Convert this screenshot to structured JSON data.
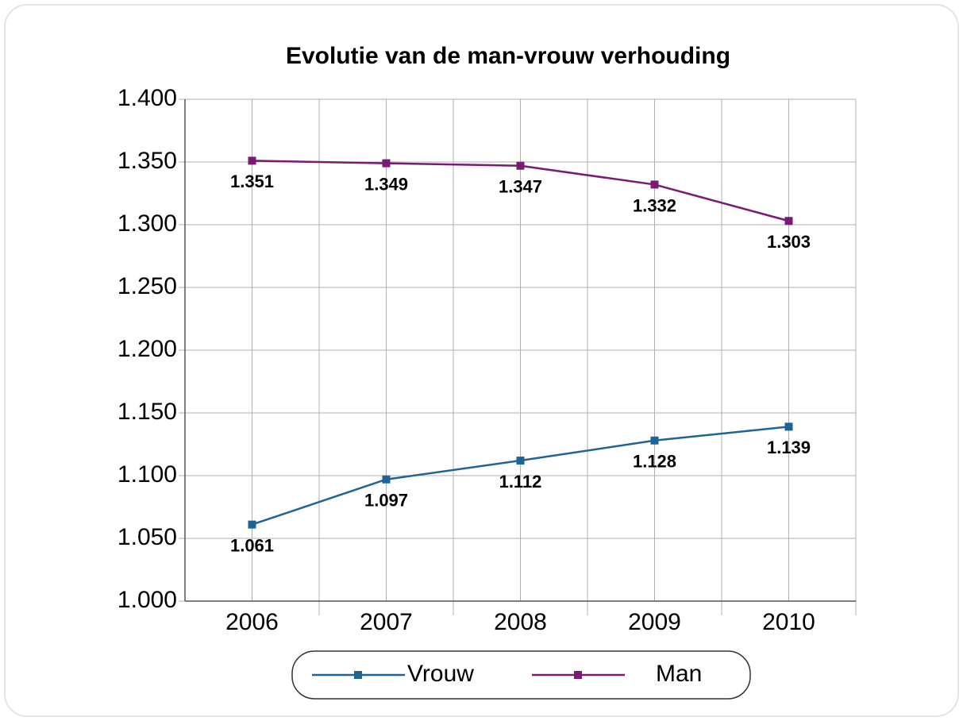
{
  "chart_data": {
    "type": "line",
    "title": "Evolutie van de man-vrouw verhouding",
    "categories": [
      "2006",
      "2007",
      "2008",
      "2009",
      "2010"
    ],
    "series": [
      {
        "name": "Vrouw",
        "color": "#1f6496",
        "values": [
          1.061,
          1.097,
          1.112,
          1.128,
          1.139
        ]
      },
      {
        "name": "Man",
        "color": "#7b1a74",
        "values": [
          1.351,
          1.349,
          1.347,
          1.332,
          1.303
        ]
      }
    ],
    "ylim": [
      1,
      1.4
    ],
    "yticks": [
      {
        "value": 1,
        "label": "1.000"
      },
      {
        "value": 1.05,
        "label": "1.050"
      },
      {
        "value": 1.1,
        "label": "1.100"
      },
      {
        "value": 1.15,
        "label": "1.150"
      },
      {
        "value": 1.2,
        "label": "1.200"
      },
      {
        "value": 1.25,
        "label": "1.250"
      },
      {
        "value": 1.3,
        "label": "1.300"
      },
      {
        "value": 1.35,
        "label": "1.350"
      },
      {
        "value": 1.4,
        "label": "1.400"
      }
    ],
    "grid": true,
    "legend": "bottom"
  }
}
